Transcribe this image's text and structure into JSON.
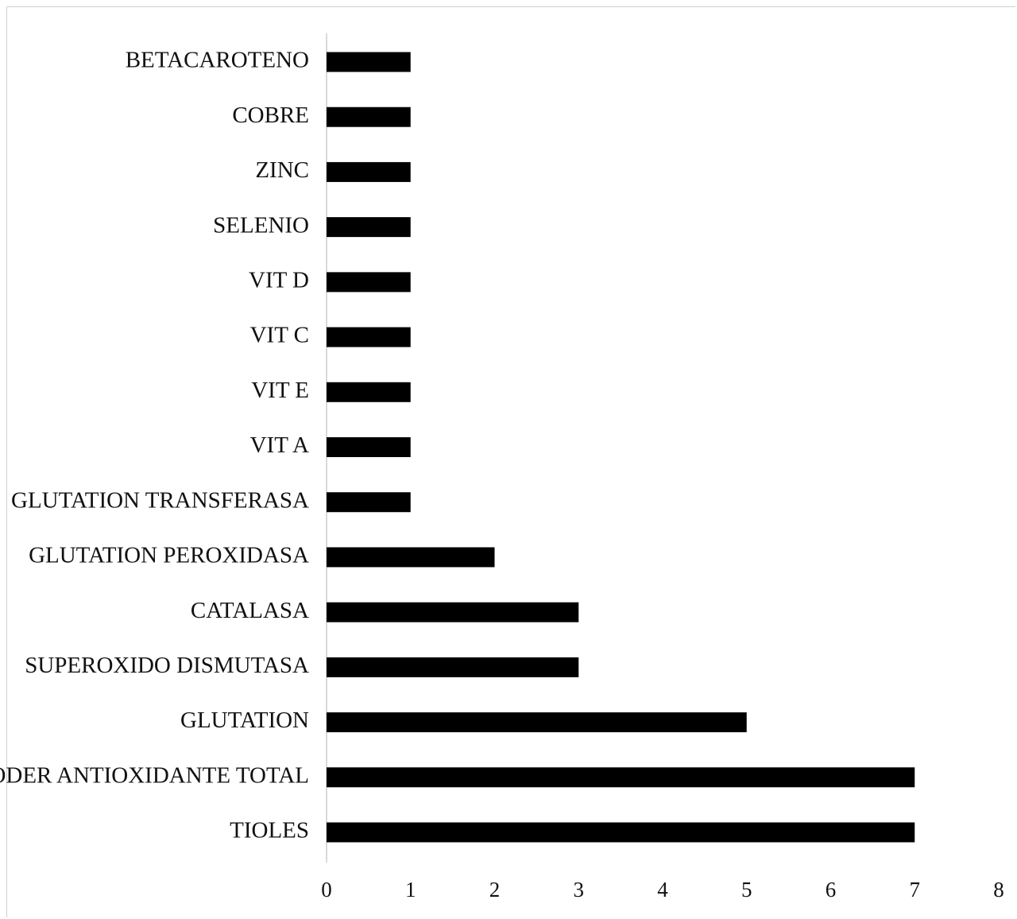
{
  "chart_data": {
    "type": "bar",
    "orientation": "horizontal",
    "categories": [
      "BETACAROTENO",
      "COBRE",
      "ZINC",
      "SELENIO",
      "VIT D",
      "VIT C",
      "VIT E",
      "VIT A",
      "GLUTATION TRANSFERASA",
      "GLUTATION PEROXIDASA",
      "CATALASA",
      "SUPEROXIDO DISMUTASA",
      "GLUTATION",
      "PODER ANTIOXIDANTE TOTAL",
      "TIOLES"
    ],
    "values": [
      1,
      1,
      1,
      1,
      1,
      1,
      1,
      1,
      1,
      2,
      3,
      3,
      5,
      7,
      7
    ],
    "xlim": [
      0,
      8
    ],
    "xticks": [
      "0",
      "1",
      "2",
      "3",
      "4",
      "5",
      "6",
      "7",
      "8"
    ],
    "title": "",
    "xlabel": "",
    "ylabel": "",
    "grid": false,
    "bar_color": "#000000"
  }
}
